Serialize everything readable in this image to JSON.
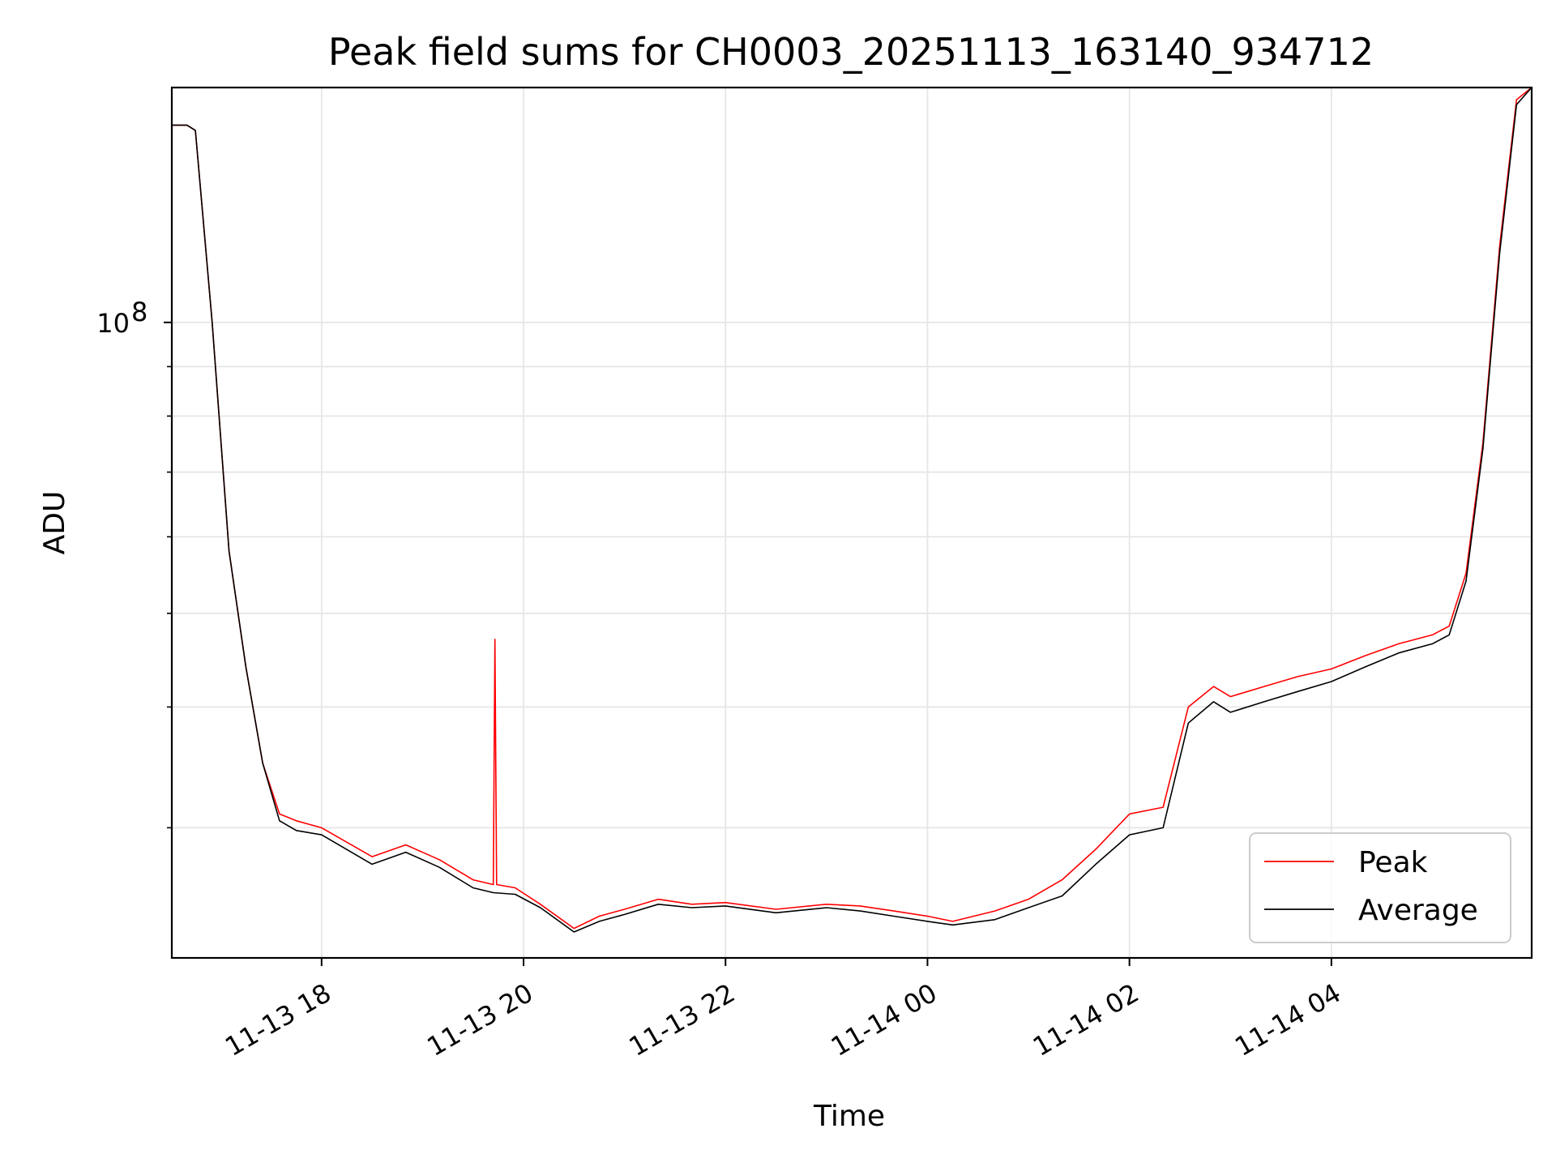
{
  "chart_data": {
    "type": "line",
    "title": "Peak field sums for CH0003_20251113_163140_934712",
    "xlabel": "Time",
    "ylabel": "ADU",
    "yscale": "log",
    "grid": true,
    "legend_position": "lower-right",
    "xlim": [
      "2025-11-13 16:31",
      "2025-11-14 05:59"
    ],
    "ylim": [
      22000000,
      175000000
    ],
    "x_ticks": [
      "2025-11-13 18:00",
      "2025-11-13 20:00",
      "2025-11-13 22:00",
      "2025-11-14 00:00",
      "2025-11-14 02:00",
      "2025-11-14 04:00"
    ],
    "x_tick_labels": [
      "11-13 18",
      "11-13 20",
      "11-13 22",
      "11-14 00",
      "11-14 02",
      "11-14 04"
    ],
    "y_major_ticks": [
      100000000
    ],
    "y_major_tick_labels": [
      {
        "base": "10",
        "exp": "8"
      }
    ],
    "y_minor_ticks": [
      30000000,
      40000000,
      50000000,
      60000000,
      70000000,
      80000000,
      90000000
    ],
    "series": [
      {
        "name": "Peak",
        "color": "#ff0000",
        "x": [
          "2025-11-13 16:31",
          "2025-11-13 16:40",
          "2025-11-13 16:45",
          "2025-11-13 16:55",
          "2025-11-13 17:05",
          "2025-11-13 17:15",
          "2025-11-13 17:25",
          "2025-11-13 17:35",
          "2025-11-13 17:45",
          "2025-11-13 18:00",
          "2025-11-13 18:30",
          "2025-11-13 18:50",
          "2025-11-13 19:10",
          "2025-11-13 19:30",
          "2025-11-13 19:42",
          "2025-11-13 19:43",
          "2025-11-13 19:44",
          "2025-11-13 19:55",
          "2025-11-13 20:10",
          "2025-11-13 20:30",
          "2025-11-13 20:45",
          "2025-11-13 21:00",
          "2025-11-13 21:20",
          "2025-11-13 21:40",
          "2025-11-13 22:00",
          "2025-11-13 22:30",
          "2025-11-13 23:00",
          "2025-11-13 23:20",
          "2025-11-13 23:40",
          "2025-11-14 00:00",
          "2025-11-14 00:15",
          "2025-11-14 00:40",
          "2025-11-14 01:00",
          "2025-11-14 01:20",
          "2025-11-14 01:40",
          "2025-11-14 02:00",
          "2025-11-14 02:20",
          "2025-11-14 02:35",
          "2025-11-14 02:50",
          "2025-11-14 03:00",
          "2025-11-14 03:20",
          "2025-11-14 03:40",
          "2025-11-14 04:00",
          "2025-11-14 04:20",
          "2025-11-14 04:40",
          "2025-11-14 05:00",
          "2025-11-14 05:10",
          "2025-11-14 05:20",
          "2025-11-14 05:30",
          "2025-11-14 05:40",
          "2025-11-14 05:50",
          "2025-11-14 05:59"
        ],
        "values": [
          160000000,
          160000000,
          158000000,
          100000000,
          58000000,
          44000000,
          35000000,
          31000000,
          30500000,
          30000000,
          28000000,
          28800000,
          27800000,
          26500000,
          26200000,
          47000000,
          26200000,
          26000000,
          25000000,
          23600000,
          24300000,
          24700000,
          25300000,
          25000000,
          25100000,
          24700000,
          25000000,
          24900000,
          24600000,
          24300000,
          24000000,
          24600000,
          25300000,
          26500000,
          28500000,
          31000000,
          31500000,
          40000000,
          42000000,
          41000000,
          42000000,
          43000000,
          43800000,
          45200000,
          46500000,
          47500000,
          48500000,
          55000000,
          75000000,
          120000000,
          170000000,
          175000000
        ]
      },
      {
        "name": "Average",
        "color": "#000000",
        "x": [
          "2025-11-13 16:31",
          "2025-11-13 16:40",
          "2025-11-13 16:45",
          "2025-11-13 16:55",
          "2025-11-13 17:05",
          "2025-11-13 17:15",
          "2025-11-13 17:25",
          "2025-11-13 17:35",
          "2025-11-13 17:45",
          "2025-11-13 18:00",
          "2025-11-13 18:30",
          "2025-11-13 18:50",
          "2025-11-13 19:10",
          "2025-11-13 19:30",
          "2025-11-13 19:42",
          "2025-11-13 19:55",
          "2025-11-13 20:10",
          "2025-11-13 20:30",
          "2025-11-13 20:45",
          "2025-11-13 21:00",
          "2025-11-13 21:20",
          "2025-11-13 21:40",
          "2025-11-13 22:00",
          "2025-11-13 22:30",
          "2025-11-13 23:00",
          "2025-11-13 23:20",
          "2025-11-13 23:40",
          "2025-11-14 00:00",
          "2025-11-14 00:15",
          "2025-11-14 00:40",
          "2025-11-14 01:00",
          "2025-11-14 01:20",
          "2025-11-14 01:40",
          "2025-11-14 02:00",
          "2025-11-14 02:20",
          "2025-11-14 02:35",
          "2025-11-14 02:50",
          "2025-11-14 03:00",
          "2025-11-14 03:20",
          "2025-11-14 03:40",
          "2025-11-14 04:00",
          "2025-11-14 04:20",
          "2025-11-14 04:40",
          "2025-11-14 05:00",
          "2025-11-14 05:10",
          "2025-11-14 05:20",
          "2025-11-14 05:30",
          "2025-11-14 05:40",
          "2025-11-14 05:50",
          "2025-11-14 05:59"
        ],
        "values": [
          160000000,
          160000000,
          158000000,
          100000000,
          58000000,
          44000000,
          35000000,
          30500000,
          29800000,
          29500000,
          27500000,
          28300000,
          27300000,
          26000000,
          25700000,
          25600000,
          24800000,
          23400000,
          24000000,
          24400000,
          25000000,
          24800000,
          24900000,
          24500000,
          24800000,
          24600000,
          24300000,
          24000000,
          23800000,
          24100000,
          24800000,
          25500000,
          27500000,
          29500000,
          30000000,
          38500000,
          40500000,
          39500000,
          40500000,
          41500000,
          42500000,
          44000000,
          45500000,
          46500000,
          47500000,
          54000000,
          74000000,
          118000000,
          168000000,
          175000000
        ]
      }
    ]
  }
}
